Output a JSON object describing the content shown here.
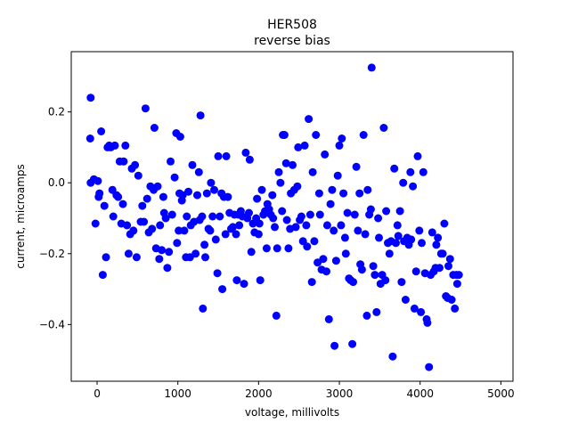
{
  "chart_data": {
    "type": "scatter",
    "title": "HER508",
    "subtitle": "reverse bias",
    "xlabel": "voltage, millivolts",
    "ylabel": "current, microamps",
    "xlim": [
      -320,
      5150
    ],
    "ylim": [
      -0.56,
      0.37
    ],
    "xticks": [
      0,
      1000,
      2000,
      3000,
      4000,
      5000
    ],
    "xtick_labels": [
      "0",
      "1000",
      "2000",
      "3000",
      "4000",
      "5000"
    ],
    "yticks": [
      -0.4,
      -0.2,
      0.0,
      0.2
    ],
    "ytick_labels": [
      "−0.4",
      "−0.2",
      "0.0",
      "0.2"
    ],
    "grid": false,
    "legend": "none",
    "marker_color": "#0000ff",
    "series": [
      {
        "points": [
          [
            -80,
            0.24
          ],
          [
            -85,
            0.125
          ],
          [
            -80,
            0.0
          ],
          [
            -40,
            0.01
          ],
          [
            -20,
            -0.115
          ],
          [
            10,
            0.005
          ],
          [
            20,
            -0.04
          ],
          [
            30,
            -0.03
          ],
          [
            50,
            0.145
          ],
          [
            70,
            -0.26
          ],
          [
            90,
            -0.065
          ],
          [
            110,
            -0.21
          ],
          [
            130,
            0.1
          ],
          [
            150,
            0.105
          ],
          [
            170,
            0.1
          ],
          [
            190,
            -0.02
          ],
          [
            200,
            -0.095
          ],
          [
            220,
            0.105
          ],
          [
            240,
            -0.035
          ],
          [
            260,
            -0.04
          ],
          [
            280,
            0.06
          ],
          [
            300,
            -0.115
          ],
          [
            320,
            -0.06
          ],
          [
            330,
            0.06
          ],
          [
            350,
            0.105
          ],
          [
            370,
            -0.12
          ],
          [
            390,
            -0.2
          ],
          [
            410,
            -0.145
          ],
          [
            430,
            0.04
          ],
          [
            450,
            -0.135
          ],
          [
            470,
            0.05
          ],
          [
            490,
            -0.21
          ],
          [
            510,
            0.02
          ],
          [
            540,
            -0.11
          ],
          [
            560,
            -0.065
          ],
          [
            580,
            -0.11
          ],
          [
            600,
            0.21
          ],
          [
            620,
            -0.045
          ],
          [
            640,
            -0.14
          ],
          [
            660,
            -0.01
          ],
          [
            680,
            -0.13
          ],
          [
            700,
            -0.02
          ],
          [
            710,
            0.155
          ],
          [
            730,
            -0.185
          ],
          [
            750,
            -0.01
          ],
          [
            770,
            -0.215
          ],
          [
            780,
            -0.12
          ],
          [
            800,
            -0.19
          ],
          [
            820,
            -0.04
          ],
          [
            830,
            -0.085
          ],
          [
            850,
            -0.1
          ],
          [
            870,
            -0.24
          ],
          [
            890,
            -0.195
          ],
          [
            910,
            0.06
          ],
          [
            930,
            -0.09
          ],
          [
            960,
            0.015
          ],
          [
            980,
            0.14
          ],
          [
            990,
            -0.17
          ],
          [
            1010,
            -0.135
          ],
          [
            1020,
            -0.03
          ],
          [
            1030,
            0.13
          ],
          [
            1050,
            -0.05
          ],
          [
            1060,
            -0.035
          ],
          [
            1080,
            -0.135
          ],
          [
            1100,
            -0.21
          ],
          [
            1110,
            -0.095
          ],
          [
            1130,
            -0.025
          ],
          [
            1150,
            -0.21
          ],
          [
            1160,
            -0.12
          ],
          [
            1180,
            0.05
          ],
          [
            1200,
            -0.11
          ],
          [
            1220,
            -0.2
          ],
          [
            1240,
            -0.035
          ],
          [
            1260,
            0.03
          ],
          [
            1270,
            -0.105
          ],
          [
            1280,
            0.19
          ],
          [
            1300,
            -0.095
          ],
          [
            1310,
            -0.355
          ],
          [
            1330,
            -0.175
          ],
          [
            1340,
            -0.21
          ],
          [
            1360,
            -0.03
          ],
          [
            1380,
            -0.13
          ],
          [
            1400,
            -0.135
          ],
          [
            1410,
            0.0
          ],
          [
            1430,
            -0.095
          ],
          [
            1450,
            -0.02
          ],
          [
            1470,
            -0.16
          ],
          [
            1490,
            -0.255
          ],
          [
            1500,
            0.075
          ],
          [
            1520,
            -0.095
          ],
          [
            1540,
            -0.03
          ],
          [
            1550,
            -0.3
          ],
          [
            1570,
            -0.04
          ],
          [
            1590,
            -0.145
          ],
          [
            1600,
            0.075
          ],
          [
            1620,
            -0.04
          ],
          [
            1640,
            -0.085
          ],
          [
            1660,
            -0.13
          ],
          [
            1680,
            -0.125
          ],
          [
            1700,
            -0.09
          ],
          [
            1720,
            -0.145
          ],
          [
            1730,
            -0.275
          ],
          [
            1750,
            -0.09
          ],
          [
            1760,
            -0.12
          ],
          [
            1780,
            -0.08
          ],
          [
            1800,
            -0.095
          ],
          [
            1820,
            -0.285
          ],
          [
            1840,
            0.085
          ],
          [
            1860,
            -0.1
          ],
          [
            1880,
            -0.085
          ],
          [
            1890,
            0.065
          ],
          [
            1910,
            -0.195
          ],
          [
            1930,
            -0.115
          ],
          [
            1950,
            -0.14
          ],
          [
            1970,
            -0.1
          ],
          [
            1980,
            -0.045
          ],
          [
            2000,
            -0.145
          ],
          [
            2010,
            -0.115
          ],
          [
            2020,
            -0.275
          ],
          [
            2040,
            -0.02
          ],
          [
            2060,
            -0.09
          ],
          [
            2080,
            -0.08
          ],
          [
            2100,
            -0.185
          ],
          [
            2110,
            -0.06
          ],
          [
            2130,
            -0.075
          ],
          [
            2150,
            -0.09
          ],
          [
            2170,
            -0.035
          ],
          [
            2180,
            -0.1
          ],
          [
            2200,
            -0.125
          ],
          [
            2220,
            -0.375
          ],
          [
            2230,
            -0.185
          ],
          [
            2250,
            0.03
          ],
          [
            2270,
            0.0
          ],
          [
            2290,
            -0.08
          ],
          [
            2300,
            0.135
          ],
          [
            2320,
            0.135
          ],
          [
            2340,
            0.055
          ],
          [
            2350,
            -0.105
          ],
          [
            2370,
            -0.185
          ],
          [
            2390,
            -0.13
          ],
          [
            2400,
            -0.03
          ],
          [
            2420,
            0.05
          ],
          [
            2440,
            -0.02
          ],
          [
            2460,
            -0.125
          ],
          [
            2480,
            -0.01
          ],
          [
            2490,
            0.1
          ],
          [
            2510,
            -0.105
          ],
          [
            2530,
            -0.095
          ],
          [
            2550,
            -0.165
          ],
          [
            2570,
            0.105
          ],
          [
            2590,
            -0.12
          ],
          [
            2600,
            -0.18
          ],
          [
            2620,
            0.18
          ],
          [
            2640,
            -0.09
          ],
          [
            2660,
            -0.28
          ],
          [
            2670,
            0.03
          ],
          [
            2690,
            -0.165
          ],
          [
            2710,
            0.135
          ],
          [
            2730,
            -0.225
          ],
          [
            2750,
            -0.03
          ],
          [
            2760,
            -0.09
          ],
          [
            2780,
            -0.245
          ],
          [
            2800,
            -0.215
          ],
          [
            2820,
            0.08
          ],
          [
            2840,
            -0.25
          ],
          [
            2850,
            -0.12
          ],
          [
            2870,
            -0.385
          ],
          [
            2890,
            -0.06
          ],
          [
            2910,
            -0.02
          ],
          [
            2930,
            -0.135
          ],
          [
            2940,
            -0.46
          ],
          [
            2960,
            -0.22
          ],
          [
            2980,
            0.02
          ],
          [
            3000,
            0.105
          ],
          [
            3020,
            -0.12
          ],
          [
            3030,
            0.125
          ],
          [
            3050,
            -0.03
          ],
          [
            3070,
            -0.155
          ],
          [
            3080,
            -0.2
          ],
          [
            3100,
            -0.085
          ],
          [
            3120,
            -0.27
          ],
          [
            3140,
            -0.275
          ],
          [
            3160,
            -0.455
          ],
          [
            3170,
            -0.28
          ],
          [
            3190,
            -0.09
          ],
          [
            3210,
            0.045
          ],
          [
            3230,
            -0.135
          ],
          [
            3250,
            -0.03
          ],
          [
            3260,
            -0.23
          ],
          [
            3280,
            -0.245
          ],
          [
            3300,
            0.135
          ],
          [
            3320,
            -0.145
          ],
          [
            3340,
            -0.375
          ],
          [
            3350,
            -0.02
          ],
          [
            3370,
            -0.09
          ],
          [
            3390,
            -0.075
          ],
          [
            3400,
            0.325
          ],
          [
            3420,
            -0.235
          ],
          [
            3440,
            -0.26
          ],
          [
            3460,
            -0.365
          ],
          [
            3480,
            -0.1
          ],
          [
            3490,
            -0.155
          ],
          [
            3510,
            -0.285
          ],
          [
            3530,
            -0.26
          ],
          [
            3550,
            0.155
          ],
          [
            3570,
            -0.275
          ],
          [
            3580,
            -0.08
          ],
          [
            3600,
            -0.17
          ],
          [
            3620,
            -0.2
          ],
          [
            3640,
            -0.165
          ],
          [
            3660,
            -0.49
          ],
          [
            3680,
            0.04
          ],
          [
            3700,
            -0.17
          ],
          [
            3720,
            -0.12
          ],
          [
            3730,
            -0.15
          ],
          [
            3750,
            -0.08
          ],
          [
            3770,
            -0.28
          ],
          [
            3790,
            0.0
          ],
          [
            3800,
            -0.165
          ],
          [
            3820,
            -0.33
          ],
          [
            3840,
            -0.155
          ],
          [
            3860,
            -0.175
          ],
          [
            3880,
            0.03
          ],
          [
            3890,
            -0.16
          ],
          [
            3910,
            -0.01
          ],
          [
            3930,
            -0.355
          ],
          [
            3950,
            -0.25
          ],
          [
            3970,
            0.075
          ],
          [
            3990,
            -0.135
          ],
          [
            4010,
            -0.365
          ],
          [
            4020,
            -0.17
          ],
          [
            4040,
            0.03
          ],
          [
            4060,
            -0.255
          ],
          [
            4080,
            -0.385
          ],
          [
            4090,
            -0.395
          ],
          [
            4110,
            -0.52
          ],
          [
            4130,
            -0.26
          ],
          [
            4150,
            -0.14
          ],
          [
            4170,
            -0.25
          ],
          [
            4190,
            -0.24
          ],
          [
            4200,
            -0.175
          ],
          [
            4220,
            -0.155
          ],
          [
            4240,
            -0.24
          ],
          [
            4260,
            -0.2
          ],
          [
            4280,
            -0.2
          ],
          [
            4300,
            -0.115
          ],
          [
            4320,
            -0.32
          ],
          [
            4340,
            -0.325
          ],
          [
            4350,
            -0.235
          ],
          [
            4370,
            -0.215
          ],
          [
            4390,
            -0.33
          ],
          [
            4410,
            -0.26
          ],
          [
            4430,
            -0.355
          ],
          [
            4450,
            -0.26
          ],
          [
            4460,
            -0.285
          ],
          [
            4480,
            -0.26
          ]
        ]
      }
    ]
  }
}
